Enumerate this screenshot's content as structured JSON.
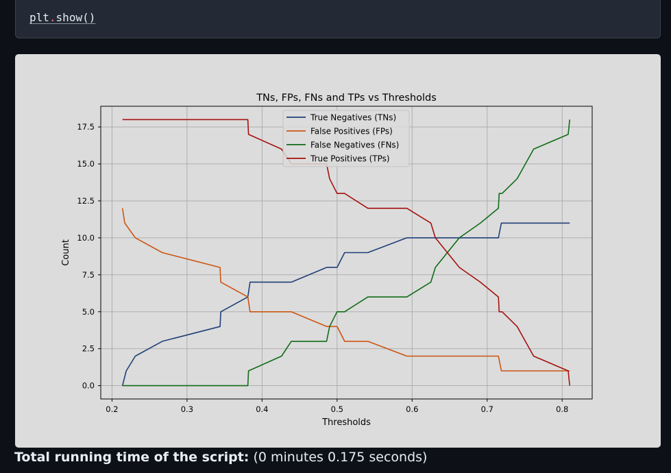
{
  "code": {
    "object": "plt",
    "separator": ".",
    "method": "show",
    "parens": "()"
  },
  "footer": {
    "label": "Total running time of the script:",
    "value": "(0 minutes 0.175 seconds)"
  },
  "chart_data": {
    "type": "line",
    "title": "TNs, FPs, FNs and TPs vs Thresholds",
    "xlabel": "Thresholds",
    "ylabel": "Count",
    "xlim": [
      0.185,
      0.84
    ],
    "ylim": [
      -0.9,
      18.9
    ],
    "xticks": [
      0.2,
      0.3,
      0.4,
      0.5,
      0.6,
      0.7,
      0.8
    ],
    "yticks": [
      0.0,
      2.5,
      5.0,
      7.5,
      10.0,
      12.5,
      15.0,
      17.5
    ],
    "xtick_labels": [
      "0.2",
      "0.3",
      "0.4",
      "0.5",
      "0.6",
      "0.7",
      "0.8"
    ],
    "ytick_labels": [
      "0.0",
      "2.5",
      "5.0",
      "7.5",
      "10.0",
      "12.5",
      "15.0",
      "17.5"
    ],
    "grid": true,
    "legend_position": "upper-center",
    "series": [
      {
        "name": "True Negatives (TNs)",
        "color": "#1f3f77",
        "x": [
          0.214,
          0.219,
          0.231,
          0.267,
          0.344,
          0.345,
          0.381,
          0.384,
          0.439,
          0.486,
          0.5,
          0.51,
          0.541,
          0.593,
          0.628,
          0.663,
          0.715,
          0.719,
          0.81
        ],
        "y": [
          0,
          1,
          2,
          3,
          4,
          5,
          6,
          7,
          7,
          8,
          8,
          9,
          9,
          10,
          10,
          10,
          10,
          11,
          11
        ]
      },
      {
        "name": "False Positives (FPs)",
        "color": "#cc5510",
        "x": [
          0.214,
          0.217,
          0.231,
          0.267,
          0.344,
          0.345,
          0.381,
          0.384,
          0.439,
          0.486,
          0.5,
          0.51,
          0.541,
          0.593,
          0.628,
          0.663,
          0.715,
          0.719,
          0.81
        ],
        "y": [
          12,
          11,
          10,
          9,
          8,
          7,
          6,
          5,
          5,
          4,
          4,
          3,
          3,
          2,
          2,
          2,
          2,
          1,
          1
        ]
      },
      {
        "name": "False Negatives (FNs)",
        "color": "#0f6b16",
        "x": [
          0.214,
          0.381,
          0.382,
          0.426,
          0.439,
          0.486,
          0.49,
          0.5,
          0.51,
          0.541,
          0.593,
          0.625,
          0.631,
          0.663,
          0.691,
          0.715,
          0.716,
          0.72,
          0.74,
          0.762,
          0.808,
          0.81
        ],
        "y": [
          0,
          0,
          1,
          2,
          3,
          3,
          4,
          5,
          5,
          6,
          6,
          7,
          8,
          10,
          11,
          12,
          13,
          13,
          14,
          16,
          17,
          18
        ]
      },
      {
        "name": "True Positives (TPs)",
        "color": "#a3110e",
        "x": [
          0.214,
          0.381,
          0.382,
          0.426,
          0.439,
          0.486,
          0.49,
          0.5,
          0.51,
          0.541,
          0.593,
          0.625,
          0.631,
          0.663,
          0.691,
          0.715,
          0.716,
          0.72,
          0.74,
          0.762,
          0.808,
          0.81
        ],
        "y": [
          18,
          18,
          17,
          16,
          15,
          15,
          14,
          13,
          13,
          12,
          12,
          11,
          10,
          8,
          7,
          6,
          5,
          5,
          4,
          2,
          1,
          0
        ]
      }
    ]
  }
}
